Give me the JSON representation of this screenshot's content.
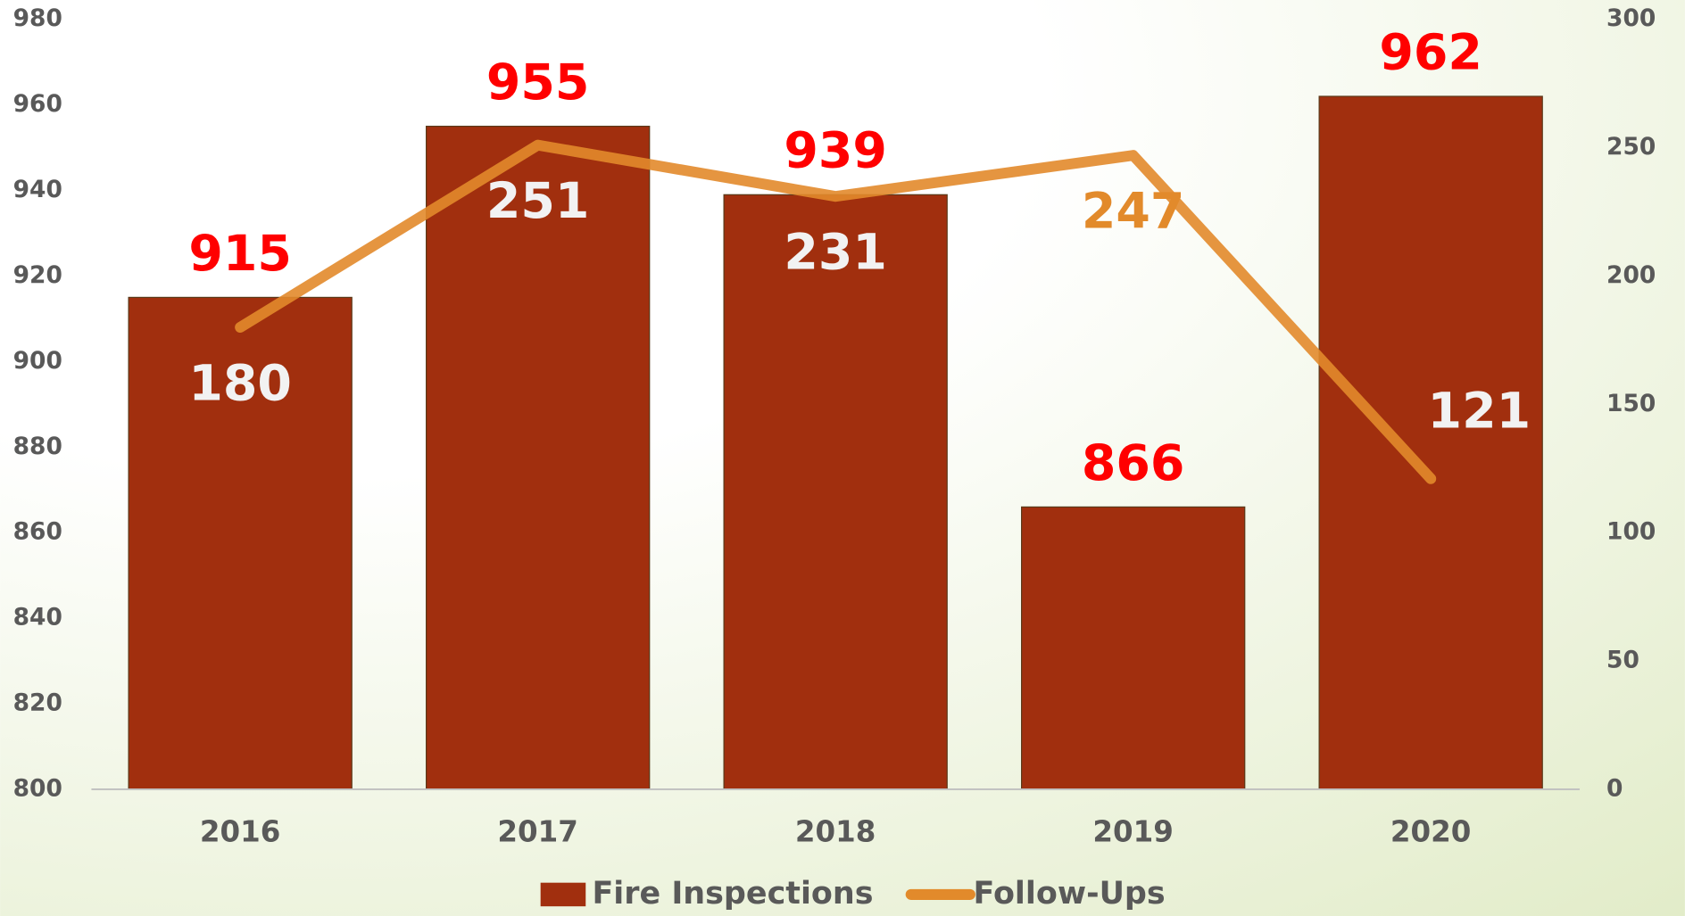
{
  "chart_data": {
    "type": "bar-line",
    "categories": [
      "2016",
      "2017",
      "2018",
      "2019",
      "2020"
    ],
    "series": [
      {
        "name": "Fire Inspections",
        "type": "bar",
        "color": "#a12f0e",
        "label_color": "#ff0000",
        "values": [
          915,
          955,
          939,
          866,
          962
        ]
      },
      {
        "name": "Follow-Ups",
        "type": "line",
        "axis": "y2",
        "color": "#e28a2b",
        "label_color": "#f2f2f2",
        "values": [
          180,
          251,
          231,
          247,
          121
        ]
      }
    ],
    "ylim": [
      800,
      980
    ],
    "yticks": [
      800,
      820,
      840,
      860,
      880,
      900,
      920,
      940,
      960,
      980
    ],
    "y2lim": [
      0,
      300
    ],
    "y2ticks": [
      0,
      50,
      100,
      150,
      200,
      250,
      300
    ],
    "grid": false,
    "legend": "bottom"
  }
}
